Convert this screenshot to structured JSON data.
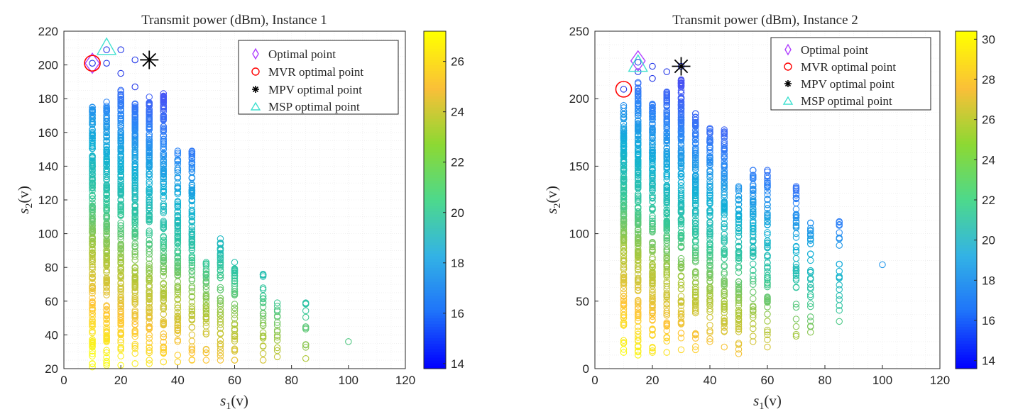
{
  "chart_data": [
    {
      "type": "scatter",
      "title": "Transmit power (dBm), Instance 1",
      "xlabel_main": "s",
      "xlabel_sub": "1",
      "xlabel_arg": "(v)",
      "ylabel_main": "s",
      "ylabel_sub": "2",
      "ylabel_arg": "(v)",
      "xlim": [
        0,
        120
      ],
      "ylim": [
        20,
        220
      ],
      "xticks": [
        "0",
        "20",
        "40",
        "60",
        "80",
        "100",
        "120"
      ],
      "yticks": [
        "20",
        "40",
        "60",
        "80",
        "100",
        "120",
        "140",
        "160",
        "180",
        "200",
        "220"
      ],
      "grid": true,
      "colorbar": {
        "colormap": "parula",
        "range": [
          13.8,
          27.2
        ],
        "ticks": [
          "14",
          "16",
          "18",
          "20",
          "22",
          "24",
          "26"
        ]
      },
      "legend": {
        "placement": "top-right",
        "entries": [
          "Optimal point",
          "MVR optimal point",
          "MPV optimal point",
          "MSP optimal point"
        ]
      },
      "columns": [
        {
          "x": 10,
          "ymin": 21,
          "ymax": 175
        },
        {
          "x": 15,
          "ymin": 22,
          "ymax": 178
        },
        {
          "x": 20,
          "ymin": 22,
          "ymax": 185
        },
        {
          "x": 25,
          "ymin": 23,
          "ymax": 177
        },
        {
          "x": 30,
          "ymin": 23,
          "ymax": 181
        },
        {
          "x": 35,
          "ymin": 24,
          "ymax": 183
        },
        {
          "x": 40,
          "ymin": 24,
          "ymax": 149
        },
        {
          "x": 45,
          "ymin": 25,
          "ymax": 149
        },
        {
          "x": 50,
          "ymin": 25,
          "ymax": 83
        },
        {
          "x": 55,
          "ymin": 25,
          "ymax": 97
        },
        {
          "x": 60,
          "ymin": 25,
          "ymax": 83
        },
        {
          "x": 70,
          "ymin": 25,
          "ymax": 76
        },
        {
          "x": 75,
          "ymin": 27,
          "ymax": 59
        },
        {
          "x": 85,
          "ymin": 26,
          "ymax": 59
        },
        {
          "x": 100,
          "ymin": 36,
          "ymax": 36
        }
      ],
      "extra_points": [
        {
          "x": 10,
          "y": 201
        },
        {
          "x": 15,
          "y": 209
        },
        {
          "x": 15,
          "y": 201
        },
        {
          "x": 20,
          "y": 209
        },
        {
          "x": 20,
          "y": 195
        },
        {
          "x": 25,
          "y": 203
        },
        {
          "x": 25,
          "y": 187
        }
      ],
      "markers": {
        "optimal": {
          "x": 10,
          "y": 201
        },
        "mvr": {
          "x": 10,
          "y": 201
        },
        "mpv": {
          "x": 30,
          "y": 203
        },
        "msp": {
          "x": 15,
          "y": 210
        }
      }
    },
    {
      "type": "scatter",
      "title": "Transmit power (dBm), Instance 2",
      "xlabel_main": "s",
      "xlabel_sub": "1",
      "xlabel_arg": "(v)",
      "ylabel_main": "s",
      "ylabel_sub": "2",
      "ylabel_arg": "(v)",
      "xlim": [
        0,
        120
      ],
      "ylim": [
        0,
        250
      ],
      "xticks": [
        "0",
        "20",
        "40",
        "60",
        "80",
        "100",
        "120"
      ],
      "yticks": [
        "0",
        "50",
        "100",
        "150",
        "200",
        "250"
      ],
      "grid": true,
      "colorbar": {
        "colormap": "parula",
        "range": [
          13.6,
          30.4
        ],
        "ticks": [
          "14",
          "16",
          "18",
          "20",
          "22",
          "24",
          "26",
          "28",
          "30"
        ]
      },
      "legend": {
        "placement": "top-right",
        "entries": [
          "Optimal point",
          "MVR optimal point",
          "MPV optimal point",
          "MSP optimal point"
        ]
      },
      "columns": [
        {
          "x": 10,
          "ymin": 12,
          "ymax": 195
        },
        {
          "x": 15,
          "ymin": 10,
          "ymax": 212
        },
        {
          "x": 20,
          "ymin": 12,
          "ymax": 196
        },
        {
          "x": 25,
          "ymin": 12,
          "ymax": 205
        },
        {
          "x": 30,
          "ymin": 14,
          "ymax": 214
        },
        {
          "x": 35,
          "ymin": 14,
          "ymax": 189
        },
        {
          "x": 40,
          "ymin": 20,
          "ymax": 178
        },
        {
          "x": 45,
          "ymin": 16,
          "ymax": 177
        },
        {
          "x": 50,
          "ymin": 11,
          "ymax": 135
        },
        {
          "x": 55,
          "ymin": 20,
          "ymax": 147
        },
        {
          "x": 60,
          "ymin": 16,
          "ymax": 147
        },
        {
          "x": 70,
          "ymin": 24,
          "ymax": 135
        },
        {
          "x": 75,
          "ymin": 27,
          "ymax": 108
        },
        {
          "x": 85,
          "ymin": 35,
          "ymax": 109
        },
        {
          "x": 100,
          "ymin": 77,
          "ymax": 77
        }
      ],
      "extra_points": [
        {
          "x": 10,
          "y": 207
        },
        {
          "x": 15,
          "y": 227
        },
        {
          "x": 15,
          "y": 220
        },
        {
          "x": 20,
          "y": 224
        },
        {
          "x": 20,
          "y": 215
        },
        {
          "x": 25,
          "y": 220
        },
        {
          "x": 30,
          "y": 224
        }
      ],
      "markers": {
        "optimal": {
          "x": 15,
          "y": 228
        },
        "mvr": {
          "x": 10,
          "y": 207
        },
        "mpv": {
          "x": 30,
          "y": 224
        },
        "msp": {
          "x": 15,
          "y": 225
        }
      }
    }
  ]
}
